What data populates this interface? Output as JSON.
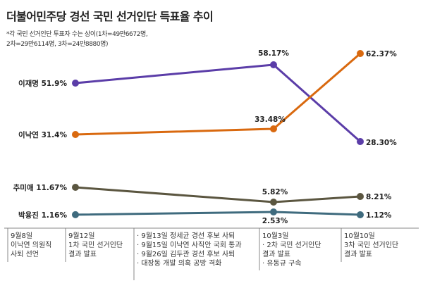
{
  "title": "더불어민주당 경선 국민 선거인단 득표율 추이",
  "note_lines": [
    "*각 국민 선거인단 투표자 수는 상이(1차=49만6672명,",
    "2차=29만6114명, 3차=24만8880명)"
  ],
  "colors": {
    "이재명": "#5b3da8",
    "이낙연": "#d9690f",
    "추미애": "#5b5640",
    "박용진": "#3f6b7e",
    "axis": "#888888"
  },
  "chart_data": {
    "type": "line",
    "x": [
      "9월12일",
      "10월3일",
      "10월10일"
    ],
    "ylabel": "",
    "series": [
      {
        "name": "이재명",
        "values": [
          51.9,
          58.17,
          28.3
        ],
        "labels": [
          "이재명 51.9%",
          "58.17%",
          "28.30%"
        ]
      },
      {
        "name": "이낙연",
        "values": [
          31.4,
          33.48,
          62.37
        ],
        "labels": [
          "이낙연 31.4%",
          "33.48%",
          "62.37%"
        ]
      },
      {
        "name": "추미애",
        "values": [
          11.67,
          5.82,
          8.21
        ],
        "labels": [
          "추미애 11.67%",
          "5.82%",
          "8.21%"
        ]
      },
      {
        "name": "박용진",
        "values": [
          1.16,
          2.53,
          1.12
        ],
        "labels": [
          "박용진 1.16%",
          "2.53%",
          "1.12%"
        ]
      }
    ],
    "timeline": [
      {
        "date": "9월8일",
        "events": [
          "이낙연 의원직",
          "사퇴 선언"
        ]
      },
      {
        "date": "9월12일",
        "events": [
          "1차 국민 선거인단",
          "결과 발표"
        ]
      },
      {
        "date": "",
        "events": [
          "· 9월13일 정세균 경선 후보 사퇴",
          "· 9월15일 이낙연 사직안 국회 통과",
          "· 9월26일 김두관 경선 후보 사퇴",
          "· 대장동 개발 의혹 공방 격화"
        ]
      },
      {
        "date": "10월3일",
        "events": [
          "· 2차 국민 선거인단",
          "  결과 발표",
          "· 유동규 구속"
        ]
      },
      {
        "date": "10월10일",
        "events": [
          "3차 국민 선거인단",
          "결과 발표"
        ]
      }
    ]
  }
}
